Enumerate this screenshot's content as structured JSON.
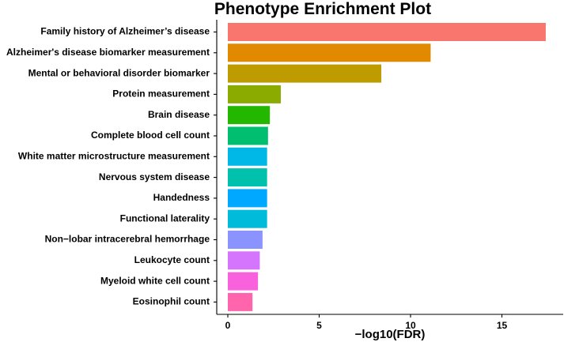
{
  "chart_data": {
    "type": "bar",
    "orientation": "horizontal",
    "title": "Phenotype Enrichment Plot",
    "xlabel": "−log10(FDR)",
    "ylabel": "",
    "xlim": [
      0,
      18
    ],
    "xticks": [
      0,
      5,
      10,
      15
    ],
    "grid": false,
    "legend": "none",
    "categories": [
      "Family history of Alzheimer’s disease",
      "Alzheimer's disease biomarker measurement",
      "Mental or behavioral disorder biomarker",
      "Protein measurement",
      "Brain disease",
      "Complete blood cell count",
      "White matter microstructure measurement",
      "Nervous system disease",
      "Handedness",
      "Functional laterality",
      "Non−lobar intracerebral hemorrhage",
      "Leukocyte count",
      "Myeloid white cell count",
      "Eosinophil count"
    ],
    "values": [
      17.4,
      11.1,
      8.4,
      2.9,
      2.3,
      2.2,
      2.15,
      2.15,
      2.15,
      2.15,
      1.9,
      1.75,
      1.65,
      1.35
    ],
    "colors": [
      "#F8766D",
      "#E18A00",
      "#BE9C00",
      "#8CAB00",
      "#24B700",
      "#00BE70",
      "#00B8E7",
      "#00C1AB",
      "#00A9FF",
      "#00BBDA",
      "#8B93FF",
      "#D575FE",
      "#F962DD",
      "#FF65AC"
    ]
  }
}
